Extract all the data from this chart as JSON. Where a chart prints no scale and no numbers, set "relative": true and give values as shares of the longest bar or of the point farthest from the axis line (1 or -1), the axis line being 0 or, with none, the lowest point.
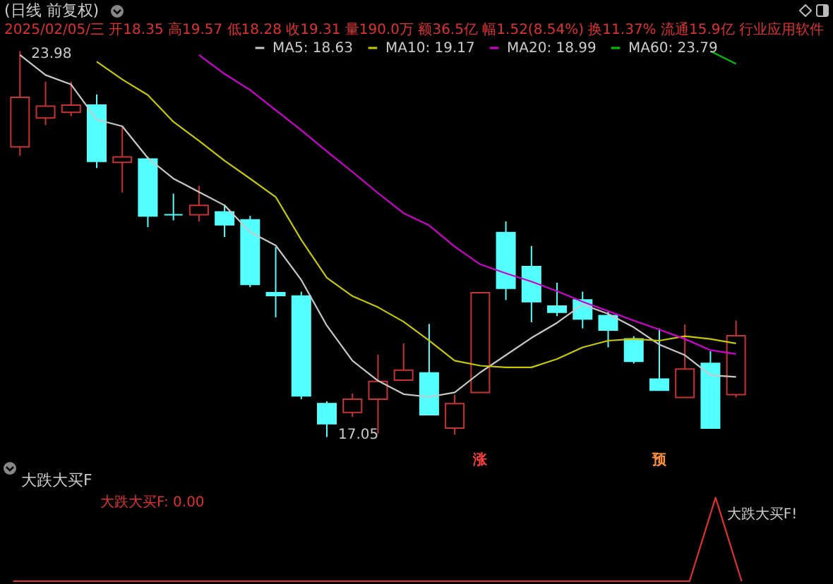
{
  "chart_data": [
    {
      "type": "candlestick",
      "title": "(日线 前复权)",
      "subtitle": "2025/02/05/三 开18.35 高19.57 低18.28 收19.31 量190.0万 额36.5亿 幅1.52(8.54%) 换11.37% 流通15.9亿 行业应用软件",
      "categories": [
        null,
        null,
        null,
        null,
        null,
        null,
        null,
        null,
        null,
        null,
        null,
        null,
        null,
        null,
        null,
        null,
        null,
        null,
        null,
        null,
        null,
        null,
        null,
        null,
        null,
        null,
        null,
        null,
        null
      ],
      "ohlc": [
        [
          22.26,
          23.98,
          22.1,
          23.15
        ],
        [
          22.78,
          23.43,
          22.65,
          22.99
        ],
        [
          22.88,
          23.43,
          22.81,
          23.01
        ],
        [
          23.01,
          23.2,
          21.88,
          22.0
        ],
        [
          21.98,
          22.63,
          21.44,
          22.08
        ],
        [
          22.04,
          22.08,
          20.82,
          21.02
        ],
        [
          21.04,
          21.42,
          20.94,
          21.04
        ],
        [
          21.04,
          21.56,
          20.92,
          21.21
        ],
        [
          21.09,
          21.22,
          20.64,
          20.86
        ],
        [
          20.95,
          21.02,
          19.74,
          19.79
        ],
        [
          19.64,
          20.46,
          19.2,
          19.59
        ],
        [
          19.58,
          19.66,
          17.73,
          17.79
        ],
        [
          17.65,
          17.69,
          17.05,
          17.29
        ],
        [
          17.49,
          17.83,
          17.41,
          17.73
        ],
        [
          17.73,
          18.53,
          17.11,
          18.05
        ],
        [
          18.07,
          18.73,
          18.07,
          18.25
        ],
        [
          18.2,
          19.08,
          17.45,
          17.45
        ],
        [
          17.21,
          17.81,
          17.09,
          17.65
        ],
        [
          17.85,
          19.64,
          17.85,
          19.64
        ],
        [
          20.72,
          20.92,
          19.51,
          19.72
        ],
        [
          20.11,
          20.48,
          19.11,
          19.48
        ],
        [
          19.4,
          19.82,
          19.22,
          19.29
        ],
        [
          19.51,
          19.66,
          19.0,
          19.17
        ],
        [
          19.23,
          19.3,
          18.66,
          18.97
        ],
        [
          18.81,
          18.86,
          18.37,
          18.41
        ],
        [
          18.09,
          19.0,
          17.89,
          17.89
        ],
        [
          17.76,
          19.07,
          17.76,
          18.27
        ],
        [
          18.37,
          18.59,
          17.21,
          17.21
        ],
        [
          17.81,
          19.14,
          17.76,
          18.87
        ]
      ],
      "colors": [
        "#c83232",
        "#c83232",
        "#c83232",
        "#54ffff",
        "#c83232",
        "#54ffff",
        "#54ffff",
        "#c83232",
        "#54ffff",
        "#54ffff",
        "#54ffff",
        "#54ffff",
        "#54ffff",
        "#c83232",
        "#c83232",
        "#c83232",
        "#54ffff",
        "#c83232",
        "#c83232",
        "#54ffff",
        "#54ffff",
        "#54ffff",
        "#54ffff",
        "#54ffff",
        "#54ffff",
        "#54ffff",
        "#c83232",
        "#54ffff",
        "#c83232"
      ],
      "series": [
        {
          "name": "MA5: 18.63",
          "type": "line",
          "color": "#c8c8c8",
          "values": [
            23.91,
            23.55,
            23.38,
            22.75,
            22.63,
            22.06,
            21.69,
            21.45,
            21.21,
            20.73,
            20.49,
            19.87,
            19.05,
            18.42,
            18.06,
            17.82,
            17.77,
            17.85,
            18.21,
            18.52,
            18.83,
            19.1,
            19.43,
            19.26,
            19.02,
            18.71,
            18.52,
            18.16,
            18.13
          ]
        },
        {
          "name": "MA10: 19.17",
          "type": "line",
          "color": "#c8c800",
          "values": [
            null,
            null,
            null,
            23.79,
            23.47,
            23.19,
            22.71,
            22.37,
            22.01,
            21.69,
            21.36,
            20.59,
            19.91,
            19.58,
            19.38,
            19.12,
            18.78,
            18.42,
            18.33,
            18.3,
            18.3,
            18.45,
            18.66,
            18.78,
            18.81,
            18.78,
            18.86,
            18.81,
            18.73
          ]
        },
        {
          "name": "MA20: 18.99",
          "type": "line",
          "color": "#d000d0",
          "values": [
            null,
            null,
            null,
            null,
            null,
            null,
            null,
            23.91,
            23.57,
            23.28,
            22.92,
            22.56,
            22.18,
            21.81,
            21.43,
            21.07,
            20.85,
            20.47,
            20.15,
            19.99,
            19.84,
            19.67,
            19.48,
            19.31,
            19.14,
            18.98,
            18.81,
            18.61,
            18.54
          ]
        },
        {
          "name": "MA60: 23.79",
          "type": "line",
          "color": "#00c000",
          "values": [
            null,
            null,
            null,
            null,
            null,
            null,
            null,
            null,
            null,
            null,
            null,
            null,
            null,
            null,
            null,
            null,
            null,
            null,
            null,
            null,
            null,
            null,
            null,
            null,
            null,
            null,
            null,
            23.98,
            23.75
          ]
        }
      ],
      "annotations": [
        "23.98",
        "17.05",
        "涨",
        "预"
      ],
      "legend": "top"
    },
    {
      "type": "line",
      "title": "大跌大买F",
      "relative": true,
      "categories": [
        null,
        null,
        null,
        null,
        null,
        null,
        null,
        null,
        null,
        null,
        null,
        null,
        null,
        null,
        null,
        null,
        null,
        null,
        null,
        null,
        null,
        null,
        null,
        null,
        null,
        null,
        null,
        null,
        null
      ],
      "series": [
        {
          "name": "大跌大买F: 0.00",
          "color": "#e03030",
          "values": [
            0,
            0,
            0,
            0,
            0,
            0,
            0,
            0,
            0,
            0,
            0,
            0,
            0,
            0,
            0,
            0,
            0,
            0,
            0,
            0,
            0,
            0,
            0,
            0,
            0,
            0,
            0,
            1,
            0
          ]
        }
      ],
      "annotations": [
        "大跌大买F!"
      ],
      "legend": "top left"
    }
  ]
}
